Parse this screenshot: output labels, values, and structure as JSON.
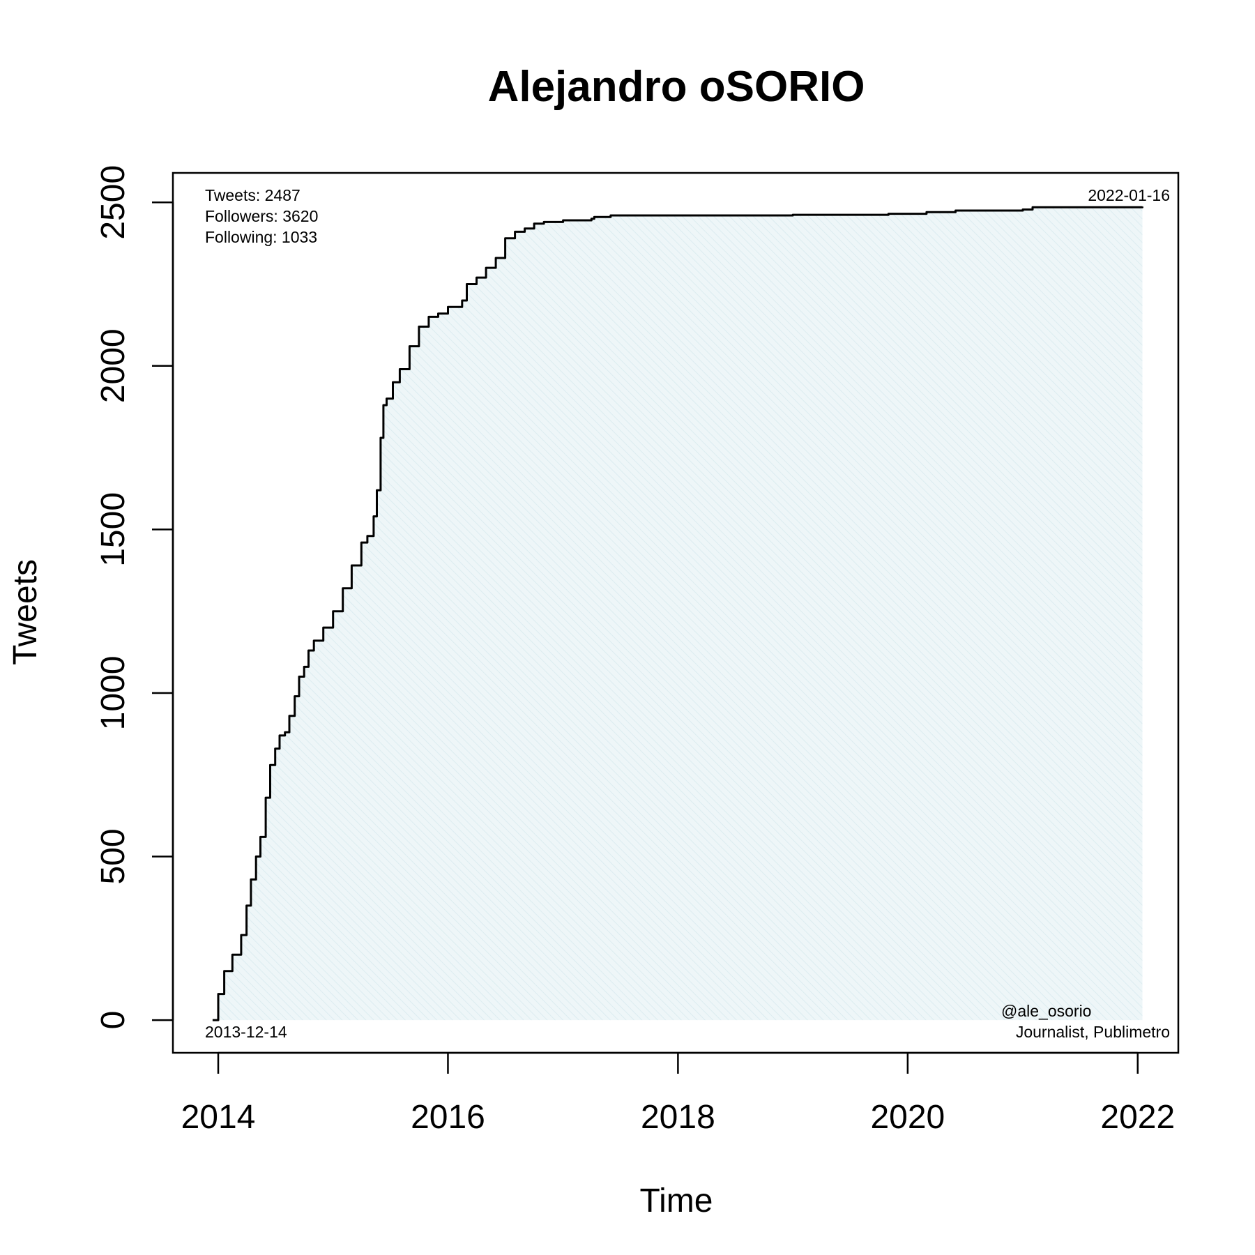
{
  "chart_data": {
    "type": "area",
    "title": "Alejandro oSORIO",
    "xlabel": "Time",
    "ylabel": "Tweets",
    "xlim": [
      "2013-08-10",
      "2022-05-10"
    ],
    "ylim": [
      -100,
      2590
    ],
    "x_ticks": [
      {
        "date": "2014-01-01",
        "label": "2014"
      },
      {
        "date": "2016-01-01",
        "label": "2016"
      },
      {
        "date": "2018-01-01",
        "label": "2018"
      },
      {
        "date": "2020-01-01",
        "label": "2020"
      },
      {
        "date": "2022-01-01",
        "label": "2022"
      }
    ],
    "y_ticks": [
      0,
      500,
      1000,
      1500,
      2000,
      2500
    ],
    "grid": false,
    "fill_color": "#e8f3f5",
    "line_color": "#000000",
    "series": [
      {
        "x": [
          "2013-12-14",
          "2014-01-01",
          "2014-01-20",
          "2014-02-15",
          "2014-03-15",
          "2014-04-01",
          "2014-04-15",
          "2014-05-01",
          "2014-05-15",
          "2014-06-01",
          "2014-06-15",
          "2014-07-01",
          "2014-07-15",
          "2014-08-01",
          "2014-08-15",
          "2014-09-01",
          "2014-09-15",
          "2014-10-01",
          "2014-10-15",
          "2014-11-01",
          "2014-12-01",
          "2015-01-01",
          "2015-02-01",
          "2015-03-01",
          "2015-04-01",
          "2015-04-20",
          "2015-05-10",
          "2015-05-20",
          "2015-06-01",
          "2015-06-10",
          "2015-06-20",
          "2015-07-10",
          "2015-08-01",
          "2015-09-01",
          "2015-10-01",
          "2015-11-01",
          "2015-12-01",
          "2016-01-01",
          "2016-02-15",
          "2016-03-01",
          "2016-04-01",
          "2016-05-01",
          "2016-06-01",
          "2016-07-01",
          "2016-08-01",
          "2016-09-01",
          "2016-10-01",
          "2016-11-01",
          "2017-01-01",
          "2017-04-01",
          "2017-04-10",
          "2017-06-01",
          "2018-01-01",
          "2019-01-01",
          "2019-11-01",
          "2020-03-01",
          "2020-06-01",
          "2021-01-01",
          "2021-02-01",
          "2022-01-16"
        ],
        "y": [
          0,
          80,
          150,
          200,
          260,
          350,
          430,
          500,
          560,
          680,
          780,
          830,
          870,
          880,
          930,
          990,
          1050,
          1080,
          1130,
          1160,
          1200,
          1250,
          1320,
          1390,
          1460,
          1480,
          1540,
          1620,
          1780,
          1880,
          1900,
          1950,
          1990,
          2060,
          2120,
          2150,
          2160,
          2180,
          2200,
          2250,
          2270,
          2300,
          2330,
          2390,
          2410,
          2420,
          2435,
          2440,
          2445,
          2450,
          2455,
          2460,
          2460,
          2462,
          2465,
          2470,
          2475,
          2478,
          2485,
          2487
        ]
      }
    ],
    "annotations": {
      "top_left": [
        "Tweets: 2487",
        "Followers: 3620",
        "Following: 1033"
      ],
      "top_right": "2022-01-16",
      "bottom_left": "2013-12-14",
      "bottom_right": [
        "@ale_osorio",
        "Journalist, Publimetro"
      ]
    }
  }
}
